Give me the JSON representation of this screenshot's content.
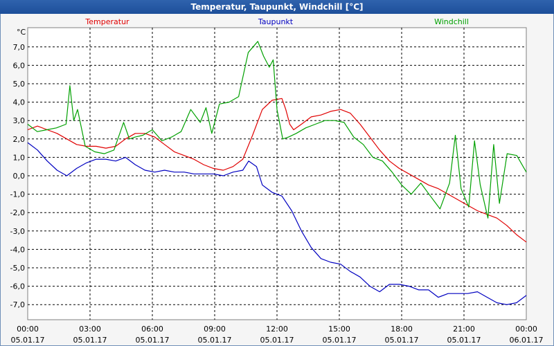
{
  "window": {
    "title": "Temperatur, Taupunkt, Windchill [°C]"
  },
  "chart_data": {
    "type": "line",
    "title": "Temperatur, Taupunkt, Windchill [°C]",
    "ylabel": "°C",
    "ylim": [
      -8,
      8
    ],
    "grid": true,
    "legend": "top",
    "y_ticks": [
      "7,0",
      "6,0",
      "5,0",
      "4,0",
      "3,0",
      "2,0",
      "1,0",
      "0,0",
      "-1,0",
      "-2,0",
      "-3,0",
      "-4,0",
      "-5,0",
      "-6,0",
      "-7,0"
    ],
    "y_tick_values": [
      7,
      6,
      5,
      4,
      3,
      2,
      1,
      0,
      -1,
      -2,
      -3,
      -4,
      -5,
      -6,
      -7
    ],
    "x_ticks": [
      {
        "time": "00:00",
        "date": "05.01.17",
        "h": 0
      },
      {
        "time": "03:00",
        "date": "05.01.17",
        "h": 3
      },
      {
        "time": "06:00",
        "date": "05.01.17",
        "h": 6
      },
      {
        "time": "09:00",
        "date": "05.01.17",
        "h": 9
      },
      {
        "time": "12:00",
        "date": "05.01.17",
        "h": 12
      },
      {
        "time": "15:00",
        "date": "05.01.17",
        "h": 15
      },
      {
        "time": "18:00",
        "date": "05.01.17",
        "h": 18
      },
      {
        "time": "21:00",
        "date": "05.01.17",
        "h": 21
      },
      {
        "time": "00:00",
        "date": "06.01.17",
        "h": 24
      }
    ],
    "series": [
      {
        "name": "Temperatur",
        "color": "#e00000",
        "points": [
          [
            0,
            2.5
          ],
          [
            0.5,
            2.7
          ],
          [
            1.0,
            2.5
          ],
          [
            1.5,
            2.3
          ],
          [
            2.0,
            2.0
          ],
          [
            2.5,
            1.7
          ],
          [
            3.0,
            1.6
          ],
          [
            3.5,
            1.6
          ],
          [
            4.0,
            1.5
          ],
          [
            4.5,
            1.6
          ],
          [
            5.0,
            2.0
          ],
          [
            5.5,
            2.3
          ],
          [
            6.0,
            2.3
          ],
          [
            6.5,
            2.1
          ],
          [
            7.0,
            1.7
          ],
          [
            7.5,
            1.3
          ],
          [
            8.0,
            1.1
          ],
          [
            8.5,
            0.9
          ],
          [
            9.0,
            0.6
          ],
          [
            9.5,
            0.4
          ],
          [
            10.0,
            0.3
          ],
          [
            10.5,
            0.5
          ],
          [
            11.0,
            0.9
          ],
          [
            11.5,
            2.2
          ],
          [
            12.0,
            3.6
          ],
          [
            12.5,
            4.1
          ],
          [
            13.0,
            4.2
          ],
          [
            13.2,
            3.6
          ],
          [
            13.4,
            2.8
          ],
          [
            13.6,
            2.5
          ],
          [
            14.0,
            2.8
          ],
          [
            14.5,
            3.2
          ],
          [
            15.0,
            3.3
          ],
          [
            15.5,
            3.5
          ],
          [
            16.0,
            3.6
          ],
          [
            16.5,
            3.4
          ],
          [
            17.0,
            2.8
          ],
          [
            17.5,
            2.1
          ],
          [
            18.0,
            1.4
          ],
          [
            18.5,
            0.8
          ],
          [
            19.0,
            0.4
          ],
          [
            19.5,
            0.1
          ],
          [
            20.0,
            -0.2
          ],
          [
            20.5,
            -0.5
          ],
          [
            21.0,
            -0.7
          ],
          [
            21.5,
            -1.0
          ],
          [
            22.0,
            -1.3
          ],
          [
            22.5,
            -1.6
          ],
          [
            23.0,
            -1.9
          ],
          [
            23.5,
            -2.1
          ],
          [
            24.0,
            -2.3
          ],
          [
            24.5,
            -2.7
          ],
          [
            25.0,
            -3.2
          ],
          [
            25.5,
            -3.6
          ]
        ]
      },
      {
        "name": "Taupunkt",
        "color": "#0000c0",
        "points": [
          [
            0,
            1.8
          ],
          [
            0.5,
            1.4
          ],
          [
            1.0,
            0.8
          ],
          [
            1.5,
            0.3
          ],
          [
            2.0,
            0.0
          ],
          [
            2.5,
            0.4
          ],
          [
            3.0,
            0.7
          ],
          [
            3.5,
            0.9
          ],
          [
            4.0,
            0.9
          ],
          [
            4.5,
            0.8
          ],
          [
            5.0,
            1.0
          ],
          [
            5.5,
            0.6
          ],
          [
            6.0,
            0.3
          ],
          [
            6.5,
            0.2
          ],
          [
            7.0,
            0.3
          ],
          [
            7.5,
            0.2
          ],
          [
            8.0,
            0.2
          ],
          [
            8.5,
            0.1
          ],
          [
            9.0,
            0.1
          ],
          [
            9.5,
            0.1
          ],
          [
            10.0,
            0.0
          ],
          [
            10.5,
            0.2
          ],
          [
            11.0,
            0.3
          ],
          [
            11.3,
            0.8
          ],
          [
            11.7,
            0.5
          ],
          [
            12.0,
            -0.5
          ],
          [
            12.5,
            -0.9
          ],
          [
            13.0,
            -1.1
          ],
          [
            13.5,
            -1.9
          ],
          [
            14.0,
            -3.0
          ],
          [
            14.5,
            -3.9
          ],
          [
            15.0,
            -4.5
          ],
          [
            15.5,
            -4.7
          ],
          [
            16.0,
            -4.8
          ],
          [
            16.5,
            -5.2
          ],
          [
            17.0,
            -5.5
          ],
          [
            17.5,
            -6.0
          ],
          [
            18.0,
            -6.3
          ],
          [
            18.5,
            -5.9
          ],
          [
            19.0,
            -5.9
          ],
          [
            19.5,
            -6.0
          ],
          [
            20.0,
            -6.2
          ],
          [
            20.5,
            -6.2
          ],
          [
            21.0,
            -6.6
          ],
          [
            21.5,
            -6.4
          ],
          [
            22.0,
            -6.4
          ],
          [
            22.5,
            -6.4
          ],
          [
            23.0,
            -6.3
          ],
          [
            23.5,
            -6.6
          ],
          [
            24.0,
            -6.9
          ],
          [
            24.5,
            -7.0
          ],
          [
            25.0,
            -6.9
          ],
          [
            25.5,
            -6.5
          ]
        ]
      },
      {
        "name": "Windchill",
        "color": "#00a000",
        "points": [
          [
            0,
            2.8
          ],
          [
            0.5,
            2.4
          ],
          [
            1.0,
            2.5
          ],
          [
            1.5,
            2.6
          ],
          [
            2.0,
            2.8
          ],
          [
            2.2,
            4.9
          ],
          [
            2.4,
            3.0
          ],
          [
            2.6,
            3.6
          ],
          [
            3.0,
            1.6
          ],
          [
            3.5,
            1.3
          ],
          [
            4.0,
            1.2
          ],
          [
            4.5,
            1.4
          ],
          [
            5.0,
            2.9
          ],
          [
            5.3,
            2.0
          ],
          [
            5.6,
            2.1
          ],
          [
            6.0,
            2.2
          ],
          [
            6.5,
            2.5
          ],
          [
            7.0,
            1.9
          ],
          [
            7.5,
            2.1
          ],
          [
            8.0,
            2.4
          ],
          [
            8.5,
            3.6
          ],
          [
            9.0,
            2.9
          ],
          [
            9.3,
            3.7
          ],
          [
            9.6,
            2.3
          ],
          [
            10.0,
            3.9
          ],
          [
            10.5,
            4.0
          ],
          [
            11.0,
            4.3
          ],
          [
            11.5,
            6.7
          ],
          [
            12.0,
            7.3
          ],
          [
            12.3,
            6.5
          ],
          [
            12.6,
            5.9
          ],
          [
            12.8,
            6.3
          ],
          [
            13.0,
            3.6
          ],
          [
            13.3,
            2.0
          ],
          [
            13.6,
            2.1
          ],
          [
            14.0,
            2.3
          ],
          [
            14.5,
            2.6
          ],
          [
            15.0,
            2.8
          ],
          [
            15.5,
            3.0
          ],
          [
            16.0,
            3.0
          ],
          [
            16.5,
            2.9
          ],
          [
            17.0,
            2.1
          ],
          [
            17.5,
            1.7
          ],
          [
            18.0,
            1.0
          ],
          [
            18.5,
            0.8
          ],
          [
            19.0,
            0.2
          ],
          [
            19.5,
            -0.5
          ],
          [
            20.0,
            -1.0
          ],
          [
            20.5,
            -0.4
          ],
          [
            21.0,
            -1.1
          ],
          [
            21.5,
            -1.8
          ],
          [
            22.0,
            -0.4
          ],
          [
            22.3,
            2.2
          ],
          [
            22.6,
            -0.7
          ],
          [
            23.0,
            -1.7
          ],
          [
            23.3,
            1.9
          ],
          [
            23.6,
            -0.5
          ],
          [
            24.0,
            -2.3
          ],
          [
            24.3,
            1.7
          ],
          [
            24.6,
            -1.5
          ],
          [
            25.0,
            1.2
          ],
          [
            25.5,
            1.1
          ],
          [
            26.0,
            0.2
          ]
        ]
      }
    ]
  }
}
